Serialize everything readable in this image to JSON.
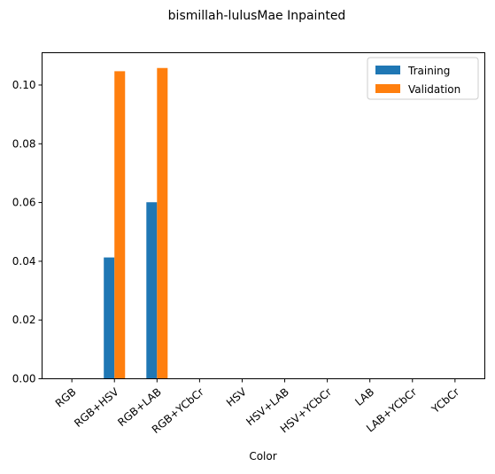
{
  "chart_data": {
    "type": "bar",
    "title": "bismillah-lulusMae Inpainted",
    "xlabel": "Color",
    "ylabel": "",
    "categories": [
      "RGB",
      "RGB+HSV",
      "RGB+LAB",
      "RGB+YCbCr",
      "HSV",
      "HSV+LAB",
      "HSV+YCbCr",
      "LAB",
      "LAB+YCbCr",
      "YCbCr"
    ],
    "series": [
      {
        "name": "Training",
        "color": "#1f77b4",
        "values": [
          0,
          0.0413,
          0.0601,
          0,
          0,
          0,
          0,
          0,
          0,
          0
        ]
      },
      {
        "name": "Validation",
        "color": "#ff7f0e",
        "values": [
          0,
          0.1047,
          0.1058,
          0,
          0,
          0,
          0,
          0,
          0,
          0
        ]
      }
    ],
    "ylim": [
      0,
      0.111
    ],
    "yticks": [
      0.0,
      0.02,
      0.04,
      0.06,
      0.08,
      0.1
    ],
    "ytick_labels": [
      "0.00",
      "0.02",
      "0.04",
      "0.06",
      "0.08",
      "0.10"
    ],
    "grid": false,
    "legend_position": "top-right"
  }
}
